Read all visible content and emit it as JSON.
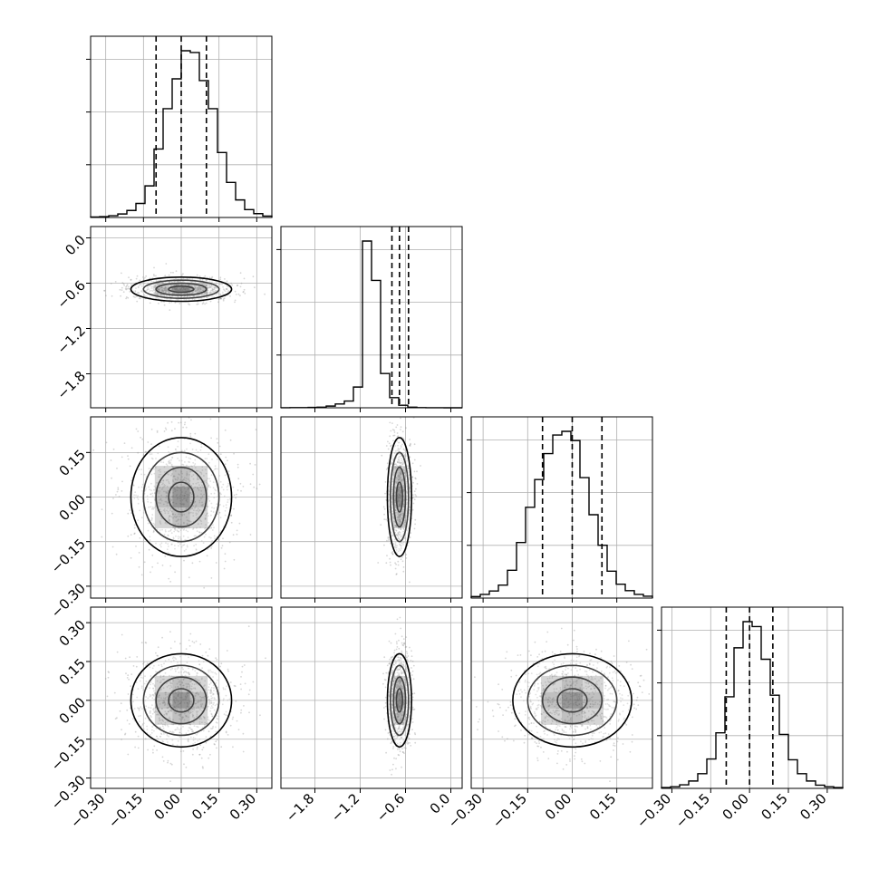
{
  "chart_data": {
    "type": "corner",
    "grid": true,
    "colors": {
      "frame": "#000000",
      "grid": "#b0b0b0",
      "points": "#8a8a8a",
      "contour": "#000000",
      "histogram": "#000000"
    },
    "parameters": [
      {
        "range": [
          -0.36,
          0.36
        ],
        "ticks": [
          -0.3,
          -0.15,
          0.0,
          0.15,
          0.3
        ],
        "tick_labels": [
          "−0.30",
          "−0.15",
          "0.00",
          "0.15",
          "0.30"
        ],
        "quantiles": [
          -0.1,
          0.0,
          0.1
        ],
        "median": 0.0,
        "sigma": 0.1,
        "hist_ymax": 2000
      },
      {
        "range": [
          -2.25,
          0.15
        ],
        "ticks": [
          -1.8,
          -1.2,
          -0.6,
          0.0
        ],
        "tick_labels": [
          "−1.8",
          "−1.2",
          "−0.6",
          "0.0"
        ],
        "quantiles": [
          -0.78,
          -0.68,
          -0.56
        ],
        "median": -0.68,
        "sigma": 0.08,
        "hist_ymax": 5000
      },
      {
        "range": [
          -0.34,
          0.27
        ],
        "ticks": [
          -0.3,
          -0.15,
          0.0,
          0.15
        ],
        "tick_labels": [
          "−0.30",
          "−0.15",
          "0.00",
          "0.15"
        ],
        "quantiles": [
          -0.1,
          0.0,
          0.1
        ],
        "median": 0.0,
        "sigma": 0.1,
        "hist_ymax": 2200
      },
      {
        "range": [
          -0.34,
          0.36
        ],
        "ticks": [
          -0.3,
          -0.15,
          0.0,
          0.15,
          0.3
        ],
        "tick_labels": [
          "−0.30",
          "−0.15",
          "0.00",
          "0.15",
          "0.30"
        ],
        "quantiles": [
          -0.09,
          0.0,
          0.09
        ],
        "median": 0.0,
        "sigma": 0.09,
        "hist_ymax": 2000
      }
    ],
    "histograms": [
      [
        3,
        5,
        10,
        20,
        40,
        80,
        180,
        390,
        620,
        790,
        950,
        940,
        780,
        620,
        370,
        200,
        100,
        45,
        22,
        8
      ],
      [
        2,
        3,
        5,
        10,
        15,
        40,
        90,
        160,
        490,
        3940,
        3010,
        810,
        240,
        60,
        15,
        5,
        2,
        1,
        0,
        0
      ],
      [
        8,
        20,
        38,
        70,
        150,
        300,
        490,
        640,
        780,
        880,
        900,
        850,
        650,
        450,
        285,
        145,
        75,
        40,
        20,
        10
      ],
      [
        5,
        10,
        22,
        45,
        90,
        180,
        340,
        560,
        860,
        1020,
        990,
        790,
        570,
        330,
        175,
        90,
        45,
        20,
        10,
        5
      ]
    ],
    "hist2d_levels": [
      0.39,
      0.86,
      0.99
    ]
  }
}
